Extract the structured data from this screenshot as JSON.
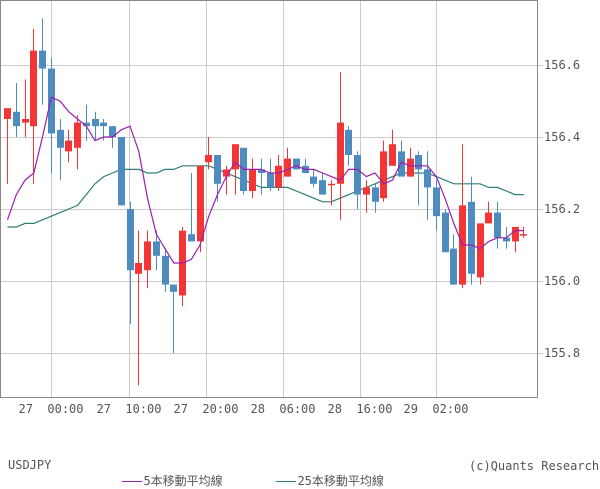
{
  "chart_data": {
    "type": "candlestick",
    "title": "USDJPY",
    "symbol": "USDJPY",
    "xlabel": "",
    "ylabel": "",
    "ylim": [
      155.68,
      156.78
    ],
    "y_ticks": [
      "156.6",
      "156.4",
      "156.2",
      "156.0",
      "155.8"
    ],
    "x_ticks": [
      "27  00:00",
      "27  10:00",
      "27  20:00",
      "28  06:00",
      "28  16:00",
      "29  02:00"
    ],
    "grid": true,
    "legend": [
      {
        "name": "5本移動平均線",
        "color": "#9b1fb0"
      },
      {
        "name": "25本移動平均線",
        "color": "#2e7d78"
      }
    ],
    "up_color": "#f43535",
    "down_color": "#4e8bbf",
    "candles": [
      {
        "o": 156.45,
        "h": 156.47,
        "l": 156.27,
        "c": 156.48
      },
      {
        "o": 156.47,
        "h": 156.55,
        "l": 156.4,
        "c": 156.43
      },
      {
        "o": 156.44,
        "h": 156.56,
        "l": 156.4,
        "c": 156.45
      },
      {
        "o": 156.43,
        "h": 156.7,
        "l": 156.27,
        "c": 156.64
      },
      {
        "o": 156.64,
        "h": 156.73,
        "l": 156.49,
        "c": 156.59
      },
      {
        "o": 156.59,
        "h": 156.62,
        "l": 156.3,
        "c": 156.41
      },
      {
        "o": 156.42,
        "h": 156.45,
        "l": 156.28,
        "c": 156.37
      },
      {
        "o": 156.36,
        "h": 156.42,
        "l": 156.33,
        "c": 156.39
      },
      {
        "o": 156.37,
        "h": 156.46,
        "l": 156.31,
        "c": 156.44
      },
      {
        "o": 156.44,
        "h": 156.49,
        "l": 156.39,
        "c": 156.43
      },
      {
        "o": 156.45,
        "h": 156.47,
        "l": 156.39,
        "c": 156.43
      },
      {
        "o": 156.44,
        "h": 156.45,
        "l": 156.39,
        "c": 156.43
      },
      {
        "o": 156.43,
        "h": 156.43,
        "l": 156.37,
        "c": 156.4
      },
      {
        "o": 156.4,
        "h": 156.4,
        "l": 156.21,
        "c": 156.21
      },
      {
        "o": 156.2,
        "h": 156.22,
        "l": 155.88,
        "c": 156.03
      },
      {
        "o": 156.02,
        "h": 156.14,
        "l": 155.71,
        "c": 156.05
      },
      {
        "o": 156.03,
        "h": 156.14,
        "l": 155.98,
        "c": 156.11
      },
      {
        "o": 156.11,
        "h": 156.14,
        "l": 156.03,
        "c": 156.07
      },
      {
        "o": 156.07,
        "h": 156.09,
        "l": 155.97,
        "c": 155.99
      },
      {
        "o": 155.99,
        "h": 155.99,
        "l": 155.8,
        "c": 155.97
      },
      {
        "o": 155.96,
        "h": 156.15,
        "l": 155.93,
        "c": 156.14
      },
      {
        "o": 156.13,
        "h": 156.3,
        "l": 156.11,
        "c": 156.11
      },
      {
        "o": 156.11,
        "h": 156.32,
        "l": 156.08,
        "c": 156.32
      },
      {
        "o": 156.33,
        "h": 156.4,
        "l": 156.31,
        "c": 156.35
      },
      {
        "o": 156.35,
        "h": 156.35,
        "l": 156.22,
        "c": 156.27
      },
      {
        "o": 156.29,
        "h": 156.32,
        "l": 156.24,
        "c": 156.31
      },
      {
        "o": 156.31,
        "h": 156.37,
        "l": 156.24,
        "c": 156.38
      },
      {
        "o": 156.37,
        "h": 156.37,
        "l": 156.24,
        "c": 156.25
      },
      {
        "o": 156.25,
        "h": 156.34,
        "l": 156.23,
        "c": 156.31
      },
      {
        "o": 156.31,
        "h": 156.34,
        "l": 156.24,
        "c": 156.3
      },
      {
        "o": 156.3,
        "h": 156.34,
        "l": 156.25,
        "c": 156.26
      },
      {
        "o": 156.26,
        "h": 156.35,
        "l": 156.25,
        "c": 156.32
      },
      {
        "o": 156.29,
        "h": 156.37,
        "l": 156.29,
        "c": 156.34
      },
      {
        "o": 156.34,
        "h": 156.34,
        "l": 156.31,
        "c": 156.31
      },
      {
        "o": 156.32,
        "h": 156.34,
        "l": 156.3,
        "c": 156.3
      },
      {
        "o": 156.29,
        "h": 156.31,
        "l": 156.26,
        "c": 156.27
      },
      {
        "o": 156.28,
        "h": 156.3,
        "l": 156.24,
        "c": 156.24
      },
      {
        "o": 156.27,
        "h": 156.28,
        "l": 156.21,
        "c": 156.27
      },
      {
        "o": 156.27,
        "h": 156.58,
        "l": 156.17,
        "c": 156.44
      },
      {
        "o": 156.42,
        "h": 156.43,
        "l": 156.32,
        "c": 156.35
      },
      {
        "o": 156.35,
        "h": 156.36,
        "l": 156.2,
        "c": 156.24
      },
      {
        "o": 156.24,
        "h": 156.28,
        "l": 156.19,
        "c": 156.26
      },
      {
        "o": 156.26,
        "h": 156.27,
        "l": 156.19,
        "c": 156.22
      },
      {
        "o": 156.23,
        "h": 156.39,
        "l": 156.22,
        "c": 156.36
      },
      {
        "o": 156.32,
        "h": 156.42,
        "l": 156.32,
        "c": 156.38
      },
      {
        "o": 156.36,
        "h": 156.39,
        "l": 156.3,
        "c": 156.29
      },
      {
        "o": 156.29,
        "h": 156.37,
        "l": 156.29,
        "c": 156.34
      },
      {
        "o": 156.35,
        "h": 156.36,
        "l": 156.21,
        "c": 156.31
      },
      {
        "o": 156.31,
        "h": 156.36,
        "l": 156.17,
        "c": 156.26
      },
      {
        "o": 156.26,
        "h": 156.28,
        "l": 156.14,
        "c": 156.18
      },
      {
        "o": 156.19,
        "h": 156.2,
        "l": 156.08,
        "c": 156.08
      },
      {
        "o": 156.09,
        "h": 156.13,
        "l": 155.99,
        "c": 155.99
      },
      {
        "o": 155.99,
        "h": 156.38,
        "l": 155.98,
        "c": 156.21
      },
      {
        "o": 156.22,
        "h": 156.29,
        "l": 155.99,
        "c": 156.02
      },
      {
        "o": 156.01,
        "h": 156.16,
        "l": 155.99,
        "c": 156.16
      },
      {
        "o": 156.16,
        "h": 156.22,
        "l": 156.16,
        "c": 156.19
      },
      {
        "o": 156.19,
        "h": 156.22,
        "l": 156.09,
        "c": 156.12
      },
      {
        "o": 156.12,
        "h": 156.15,
        "l": 156.09,
        "c": 156.11
      },
      {
        "o": 156.11,
        "h": 156.15,
        "l": 156.08,
        "c": 156.15
      },
      {
        "o": 156.13,
        "h": 156.15,
        "l": 156.12,
        "c": 156.13
      }
    ],
    "ma5": [
      156.17,
      156.24,
      156.28,
      156.3,
      156.4,
      156.51,
      156.5,
      156.47,
      156.45,
      156.43,
      156.39,
      156.4,
      156.4,
      156.42,
      156.43,
      156.36,
      156.23,
      156.13,
      156.09,
      156.05,
      156.05,
      156.06,
      156.1,
      156.18,
      156.24,
      156.29,
      156.33,
      156.31,
      156.31,
      156.31,
      156.3,
      156.3,
      156.31,
      156.32,
      156.31,
      156.31,
      156.3,
      156.29,
      156.28,
      156.31,
      156.31,
      156.29,
      156.3,
      156.27,
      156.28,
      156.33,
      156.32,
      156.32,
      156.32,
      156.29,
      156.23,
      156.16,
      156.1,
      156.1,
      156.09,
      156.11,
      156.12,
      156.12,
      156.14,
      156.14
    ],
    "ma25": [
      156.15,
      156.15,
      156.16,
      156.16,
      156.17,
      156.18,
      156.19,
      156.2,
      156.21,
      156.24,
      156.27,
      156.29,
      156.3,
      156.31,
      156.31,
      156.31,
      156.3,
      156.3,
      156.31,
      156.31,
      156.32,
      156.32,
      156.32,
      156.32,
      156.31,
      156.3,
      156.29,
      156.28,
      156.27,
      156.26,
      156.26,
      156.26,
      156.26,
      156.25,
      156.24,
      156.23,
      156.22,
      156.22,
      156.23,
      156.24,
      156.25,
      156.26,
      156.27,
      156.28,
      156.29,
      156.3,
      156.3,
      156.3,
      156.3,
      156.29,
      156.28,
      156.27,
      156.27,
      156.27,
      156.27,
      156.26,
      156.26,
      156.25,
      156.24,
      156.24
    ]
  },
  "footer": {
    "symbol_label": "USDJPY",
    "legend_ma5": "5本移動平均線",
    "legend_ma25": "25本移動平均線",
    "copyright": "(c)Quants Research"
  }
}
